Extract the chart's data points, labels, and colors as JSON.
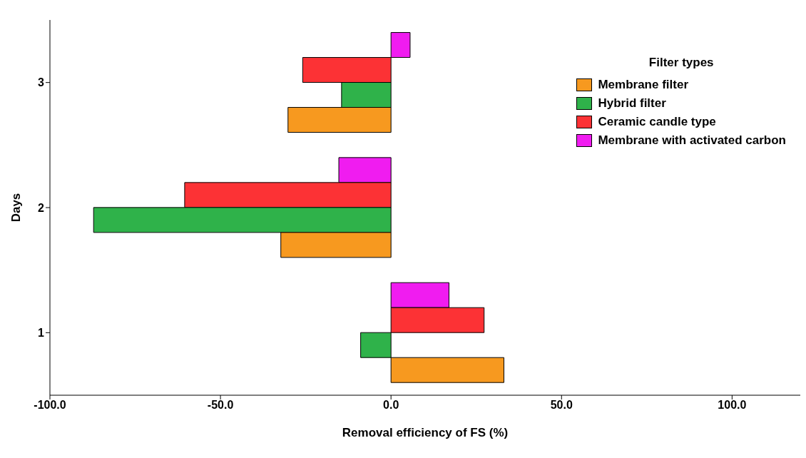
{
  "chart_data": {
    "type": "bar",
    "orientation": "horizontal",
    "xlabel": "Removal efficiency of FS (%)",
    "ylabel": "Days",
    "legend_title": "Filter types",
    "legend": "top right",
    "categories": [
      "3",
      "2",
      "1"
    ],
    "series": [
      {
        "name": "Membrane filter",
        "color": "#f7991f",
        "values": [
          -30.2,
          -32.3,
          33.1
        ]
      },
      {
        "name": "Hybrid filter",
        "color": "#2fb24a",
        "values": [
          -14.5,
          -87.2,
          -8.9
        ]
      },
      {
        "name": "Ceramic candle type",
        "color": "#fc3235",
        "values": [
          -25.9,
          -60.5,
          27.3
        ]
      },
      {
        "name": "Membrane with activated carbon",
        "color": "#f01cf0",
        "values": [
          5.6,
          -15.3,
          17
        ]
      }
    ],
    "xlim": [
      -100,
      120
    ],
    "xticks": [
      {
        "value": -100,
        "label": "-100.0"
      },
      {
        "value": -50,
        "label": "-50.0"
      },
      {
        "value": 0,
        "label": "0.0"
      },
      {
        "value": 50,
        "label": "50.0"
      },
      {
        "value": 100,
        "label": "100.0"
      }
    ]
  }
}
